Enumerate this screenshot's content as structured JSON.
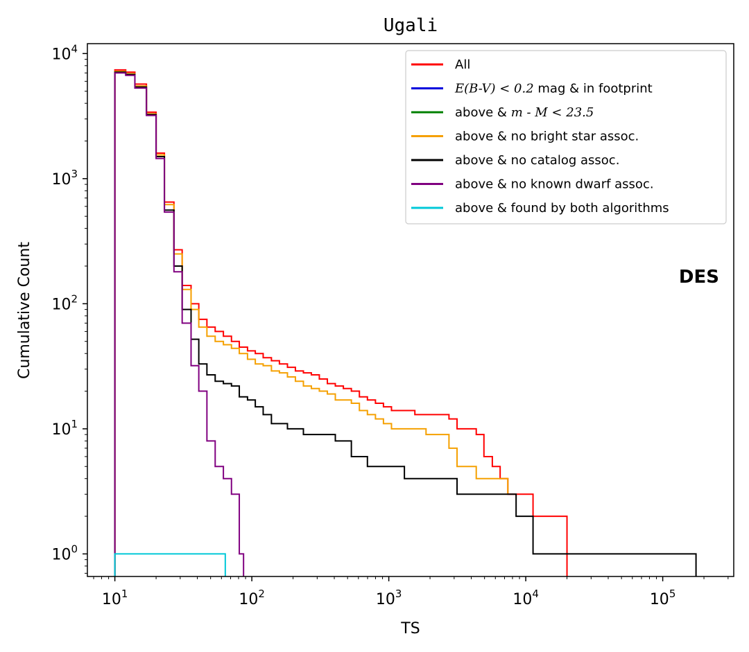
{
  "chart_data": {
    "type": "line",
    "step": true,
    "title": "Ugali",
    "xlabel": "TS",
    "ylabel": "Cumulative Count",
    "xscale": "log",
    "yscale": "log",
    "xlim": [
      6.3,
      330000
    ],
    "ylim": [
      0.66,
      12000
    ],
    "x_ticks": [
      {
        "base": "10",
        "exp": "1"
      },
      {
        "base": "10",
        "exp": "2"
      },
      {
        "base": "10",
        "exp": "3"
      },
      {
        "base": "10",
        "exp": "4"
      },
      {
        "base": "10",
        "exp": "5"
      }
    ],
    "y_ticks": [
      {
        "base": "10",
        "exp": "0"
      },
      {
        "base": "10",
        "exp": "1"
      },
      {
        "base": "10",
        "exp": "2"
      },
      {
        "base": "10",
        "exp": "3"
      },
      {
        "base": "10",
        "exp": "4"
      }
    ],
    "annotation": "DES",
    "legend_position": "upper right",
    "grid": false,
    "series": [
      {
        "name": "All",
        "color": "#ff0000",
        "x": [
          10,
          12,
          14,
          17,
          20,
          23,
          27,
          31,
          36,
          41,
          47,
          54,
          62,
          71,
          81,
          93,
          106,
          121,
          139,
          159,
          182,
          208,
          238,
          272,
          311,
          356,
          407,
          466,
          533,
          610,
          698,
          799,
          914,
          1046,
          1300,
          1550,
          1870,
          2270,
          2750,
          3150,
          3630,
          4350,
          4950,
          5700,
          6500,
          7400,
          8500,
          11300,
          20000
        ],
        "y": [
          7400,
          7100,
          5700,
          3400,
          1600,
          650,
          270,
          140,
          100,
          75,
          65,
          60,
          55,
          50,
          45,
          42,
          40,
          37,
          35,
          33,
          31,
          29,
          28,
          27,
          25,
          23,
          22,
          21,
          20,
          18,
          17,
          16,
          15,
          14,
          14,
          13,
          13,
          13,
          12,
          10,
          10,
          9,
          6,
          5,
          4,
          3,
          3,
          2,
          0.66
        ]
      },
      {
        "name": "$E(B-V) < 0.2$ mag & in footprint",
        "color": "#0000dd",
        "x": [],
        "y": []
      },
      {
        "name": "above & $m - M < 23.5$",
        "color": "#008000",
        "x": [],
        "y": []
      },
      {
        "name": "above & no bright star assoc.",
        "color": "#f5a000",
        "x": [
          10,
          12,
          14,
          17,
          20,
          23,
          27,
          31,
          36,
          41,
          47,
          54,
          62,
          71,
          81,
          93,
          106,
          121,
          139,
          159,
          182,
          208,
          238,
          272,
          311,
          356,
          407,
          466,
          533,
          610,
          698,
          799,
          914,
          1046,
          1300,
          1550,
          1870,
          2270,
          2750,
          3150,
          3630,
          4350,
          4950,
          5700,
          6500,
          7400
        ],
        "y": [
          7200,
          6900,
          5500,
          3300,
          1550,
          620,
          250,
          130,
          90,
          65,
          55,
          50,
          47,
          44,
          40,
          36,
          33,
          32,
          29,
          28,
          26,
          24,
          22,
          21,
          20,
          19,
          17,
          17,
          16,
          14,
          13,
          12,
          11,
          10,
          10,
          10,
          9,
          9,
          7,
          5,
          5,
          4,
          4,
          4,
          4,
          3
        ]
      },
      {
        "name": "above & no catalog assoc.",
        "color": "#000000",
        "x": [
          10,
          12,
          14,
          17,
          20,
          23,
          27,
          31,
          36,
          41,
          47,
          54,
          62,
          71,
          81,
          93,
          106,
          121,
          139,
          159,
          182,
          208,
          238,
          272,
          311,
          356,
          407,
          466,
          533,
          610,
          698,
          799,
          914,
          1046,
          1300,
          1550,
          1870,
          2270,
          2750,
          3150,
          3630,
          4350,
          4950,
          5700,
          6500,
          7400,
          8500,
          11300,
          20000,
          175000
        ],
        "y": [
          7100,
          6800,
          5400,
          3250,
          1500,
          560,
          200,
          90,
          52,
          33,
          27,
          24,
          23,
          22,
          18,
          17,
          15,
          13,
          11,
          11,
          10,
          10,
          9,
          9,
          9,
          9,
          8,
          8,
          6,
          6,
          5,
          5,
          5,
          5,
          4,
          4,
          4,
          4,
          4,
          3,
          3,
          3,
          3,
          3,
          3,
          3,
          2,
          1,
          1,
          0.66
        ]
      },
      {
        "name": "above & no known dwarf assoc.",
        "color": "#800080",
        "x": [
          10,
          12,
          14,
          17,
          20,
          23,
          27,
          31,
          36,
          41,
          47,
          54,
          62,
          71,
          81,
          87
        ],
        "y": [
          7000,
          6700,
          5300,
          3200,
          1450,
          540,
          180,
          70,
          32,
          20,
          8,
          5,
          4,
          3,
          1,
          0.66
        ]
      },
      {
        "name": "above & found by both algorithms",
        "color": "#00c8d8",
        "x": [
          10,
          64
        ],
        "y": [
          1,
          0.66
        ]
      }
    ]
  }
}
